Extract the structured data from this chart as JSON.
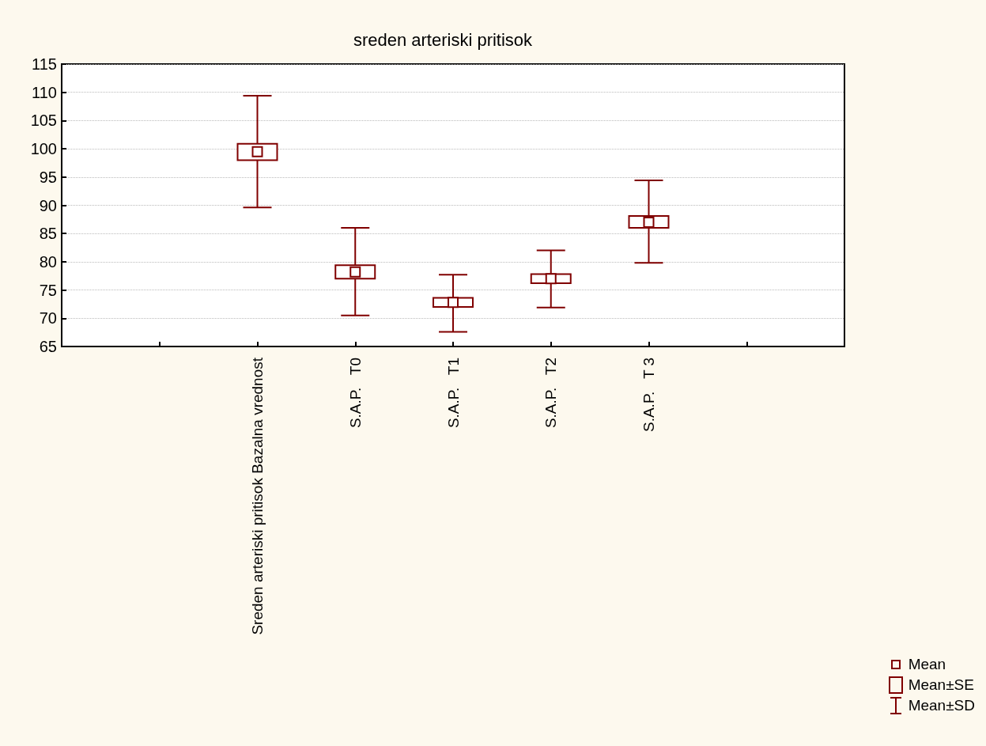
{
  "chart_data": {
    "type": "box",
    "title": "sreden arteriski pritisok",
    "categories": [
      null,
      null,
      "Sreden arteriski pritisok Bazalna vrednost",
      "S.A.P.   T0",
      "S.A.P.   T1",
      "S.A.P.   T2",
      "S.A.P.   T 3",
      null,
      null
    ],
    "ylim": [
      65,
      115
    ],
    "yticks": [
      65,
      70,
      75,
      80,
      85,
      90,
      95,
      100,
      105,
      110,
      115
    ],
    "grid": "y",
    "annotations": [
      "Mean",
      "Mean±SE",
      "Mean±SD"
    ],
    "series": [
      {
        "color": "#800000",
        "boxes": [
          null,
          null,
          {
            "low": 89.6,
            "q1": 98.0,
            "median": 99.5,
            "q3": 100.9,
            "high": 109.4
          },
          {
            "low": 70.5,
            "q1": 77.0,
            "median": 78.2,
            "q3": 79.4,
            "high": 86.0
          },
          {
            "low": 67.6,
            "q1": 72.0,
            "median": 72.8,
            "q3": 73.6,
            "high": 77.7
          },
          {
            "low": 71.9,
            "q1": 76.2,
            "median": 77.0,
            "q3": 77.8,
            "high": 82.0
          },
          {
            "low": 79.8,
            "q1": 86.0,
            "median": 87.0,
            "q3": 88.1,
            "high": 94.4
          },
          null,
          null
        ]
      }
    ]
  }
}
